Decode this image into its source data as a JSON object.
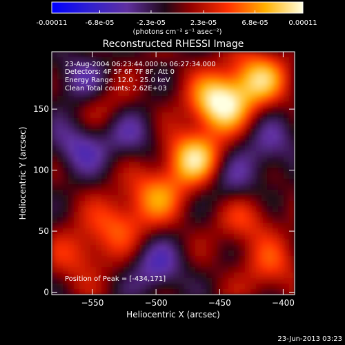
{
  "chart_data": {
    "type": "heatmap",
    "title": "Reconstructed RHESSI Image",
    "xlabel": "Heliocentric X (arcsec)",
    "ylabel": "Heliocentric Y (arcsec)",
    "xlim": [
      -582,
      -391
    ],
    "ylim": [
      -2,
      197
    ],
    "x_ticks": [
      -550,
      -500,
      -450,
      -400
    ],
    "y_ticks": [
      0,
      50,
      100,
      150
    ],
    "colorbar": {
      "min": -0.00011,
      "max": 0.00011,
      "tick_values": [
        -0.00011,
        -6.8e-05,
        -2.3e-05,
        2.3e-05,
        6.8e-05,
        0.00011
      ],
      "tick_labels": [
        "-0.00011",
        "-6.8e-05",
        "-2.3e-05",
        "2.3e-05",
        "6.8e-05",
        "0.00011"
      ],
      "units_label": "(photons cm⁻² s⁻¹ asec⁻²)",
      "colormap": [
        "#0000ff",
        "#6030a0",
        "#000000",
        "#c00000",
        "#ff6000",
        "#ffc000",
        "#ffffe0"
      ]
    },
    "annotations": {
      "time_range": "23-Aug-2004 06:23:44.000 to 06:27:34.000",
      "detectors": "Detectors: 4F 5F 6F 7F 8F, Att 0",
      "energy": "Energy Range: 12.0 - 25.0 keV",
      "clean": "Clean    Total counts: 2.62E+03",
      "peak": "Position of Peak = [-434,171]"
    },
    "sources": [
      {
        "x": -470,
        "y": 110,
        "amp": 9e-05
      },
      {
        "x": -450,
        "y": 155,
        "amp": 0.00011
      },
      {
        "x": -500,
        "y": 80,
        "amp": 6e-05
      },
      {
        "x": -530,
        "y": 55,
        "amp": 5e-05
      },
      {
        "x": -420,
        "y": 175,
        "amp": 8e-05
      },
      {
        "x": -560,
        "y": 30,
        "amp": 4e-05
      },
      {
        "x": -430,
        "y": 60,
        "amp": 4e-05
      },
      {
        "x": -540,
        "y": 150,
        "amp": 3e-05
      },
      {
        "x": -410,
        "y": 20,
        "amp": 4e-05
      },
      {
        "x": -560,
        "y": 120,
        "amp": -5e-05
      },
      {
        "x": -520,
        "y": 130,
        "amp": -4e-05
      },
      {
        "x": -440,
        "y": 90,
        "amp": -4e-05
      },
      {
        "x": -500,
        "y": 20,
        "amp": -5e-05
      },
      {
        "x": -410,
        "y": 120,
        "amp": -4e-05
      },
      {
        "x": -560,
        "y": 175,
        "amp": -4e-05
      }
    ]
  },
  "footer_date": "23-Jun-2013 03:23"
}
